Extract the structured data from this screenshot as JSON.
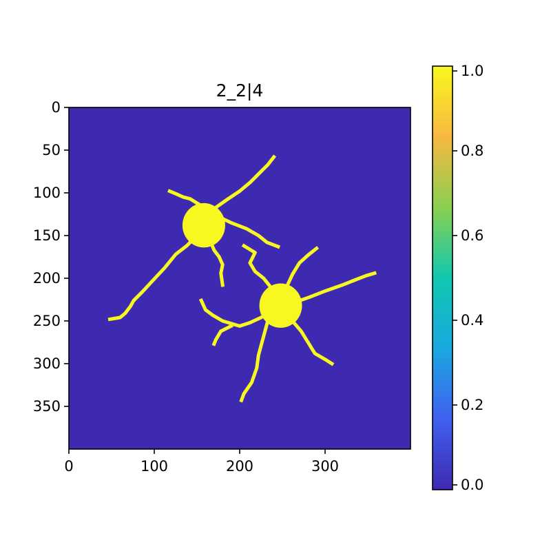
{
  "chart_data": {
    "type": "heatmap",
    "title": "2_2|4",
    "xlabel": "",
    "ylabel": "",
    "image_shape": [
      400,
      400
    ],
    "xlim": [
      0,
      400
    ],
    "ylim": [
      400,
      0
    ],
    "x_ticks": [
      0,
      100,
      200,
      300
    ],
    "y_ticks": [
      0,
      50,
      100,
      150,
      200,
      250,
      300,
      350
    ],
    "value_range": [
      0.0,
      1.0
    ],
    "background_value": 0.0,
    "foreground_value": 1.0,
    "grid": false,
    "colorbar": {
      "position": "right",
      "ticks": [
        "0.0",
        "0.2",
        "0.4",
        "0.6",
        "0.8",
        "1.0"
      ],
      "colors": [
        "#3d2ab0",
        "#4060f0",
        "#1aa8e0",
        "#10c8b0",
        "#8ad050",
        "#f8b840",
        "#f8f820"
      ]
    },
    "colors": {
      "background": "#3d2ab0",
      "foreground": "#f8f820"
    },
    "objects": [
      {
        "name": "cell-1",
        "soma": {
          "cx": 158,
          "cy": 138,
          "rx": 25,
          "ry": 26
        },
        "processes": [
          [
            [
              150,
              150
            ],
            [
              138,
              162
            ],
            [
              125,
              172
            ],
            [
              112,
              188
            ],
            [
              98,
              203
            ],
            [
              86,
              216
            ],
            [
              76,
              226
            ],
            [
              72,
              233
            ],
            [
              66,
              241
            ],
            [
              60,
              246
            ],
            [
              48,
              248
            ]
          ],
          [
            [
              168,
              120
            ],
            [
              185,
              108
            ],
            [
              200,
              98
            ],
            [
              212,
              88
            ],
            [
              224,
              76
            ],
            [
              233,
              67
            ],
            [
              240,
              58
            ]
          ],
          [
            [
              175,
              128
            ],
            [
              190,
              135
            ],
            [
              208,
              142
            ],
            [
              222,
              150
            ],
            [
              232,
              158
            ],
            [
              245,
              163
            ]
          ],
          [
            [
              158,
              117
            ],
            [
              150,
              112
            ],
            [
              142,
              107
            ],
            [
              134,
              105
            ],
            [
              125,
              101
            ],
            [
              118,
              98
            ]
          ],
          [
            [
              165,
              155
            ],
            [
              170,
              167
            ],
            [
              176,
              175
            ],
            [
              180,
              184
            ],
            [
              178,
              194
            ],
            [
              180,
              208
            ]
          ]
        ]
      },
      {
        "name": "cell-2",
        "soma": {
          "cx": 248,
          "cy": 232,
          "rx": 25,
          "ry": 26
        },
        "processes": [
          [
            [
              265,
              228
            ],
            [
              282,
              222
            ],
            [
              300,
              215
            ],
            [
              320,
              208
            ],
            [
              335,
              202
            ],
            [
              348,
              197
            ],
            [
              358,
              194
            ]
          ],
          [
            [
              240,
              215
            ],
            [
              228,
              200
            ],
            [
              218,
              192
            ],
            [
              212,
              182
            ],
            [
              218,
              170
            ],
            [
              205,
              162
            ]
          ],
          [
            [
              255,
              210
            ],
            [
              262,
              195
            ],
            [
              270,
              182
            ],
            [
              280,
              173
            ],
            [
              290,
              165
            ]
          ],
          [
            [
              238,
              238
            ],
            [
              225,
              246
            ],
            [
              212,
              252
            ],
            [
              200,
              256
            ],
            [
              180,
              250
            ],
            [
              168,
              243
            ],
            [
              160,
              237
            ],
            [
              155,
              226
            ]
          ],
          [
            [
              234,
              246
            ],
            [
              228,
              268
            ],
            [
              222,
              290
            ],
            [
              220,
              305
            ],
            [
              214,
              322
            ],
            [
              205,
              335
            ],
            [
              202,
              343
            ]
          ],
          [
            [
              260,
              248
            ],
            [
              272,
              262
            ],
            [
              280,
              275
            ],
            [
              288,
              288
            ],
            [
              300,
              295
            ],
            [
              308,
              300
            ]
          ],
          [
            [
              190,
              256
            ],
            [
              178,
              262
            ],
            [
              172,
              272
            ],
            [
              170,
              277
            ]
          ]
        ]
      }
    ]
  }
}
